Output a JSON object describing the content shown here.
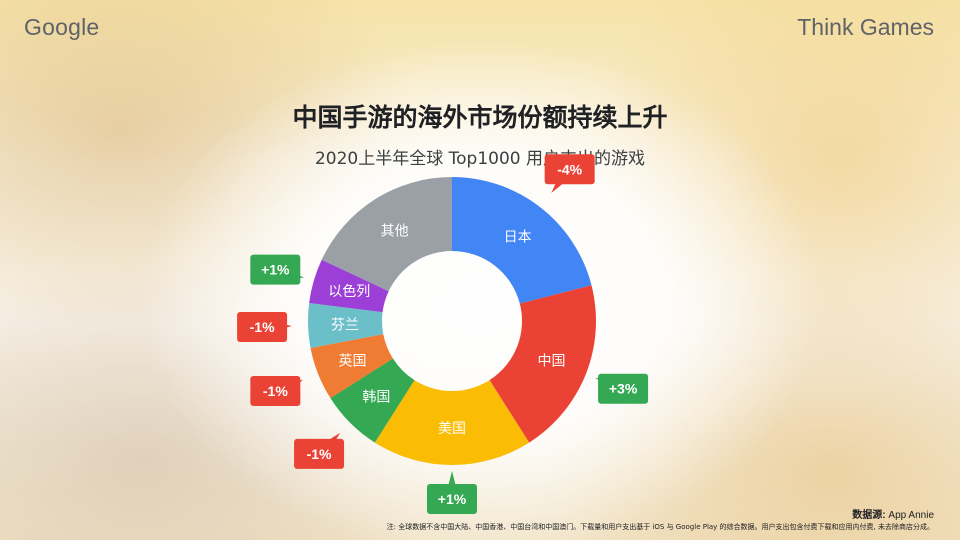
{
  "header": {
    "logo": "Google",
    "brand": "Think Games"
  },
  "chart_data": {
    "type": "pie",
    "title": "中国手游的海外市场份额持续上升",
    "subtitle": "2020上半年全球 Top1000 用户支出的游戏",
    "slices": [
      {
        "label": "日本",
        "value": 21,
        "color": "#4285f4",
        "change": "-4%",
        "change_color": "#ea4335"
      },
      {
        "label": "中国",
        "value": 20,
        "color": "#ea4335",
        "change": "+3%",
        "change_color": "#34a853"
      },
      {
        "label": "美国",
        "value": 18,
        "color": "#fbbc04",
        "change": "+1%",
        "change_color": "#34a853"
      },
      {
        "label": "韩国",
        "value": 7,
        "color": "#34a853",
        "change": "-1%",
        "change_color": "#ea4335"
      },
      {
        "label": "英国",
        "value": 6,
        "color": "#f07b32",
        "change": "-1%",
        "change_color": "#ea4335"
      },
      {
        "label": "芬兰",
        "value": 5,
        "color": "#6bbfc9",
        "change": "-1%",
        "change_color": "#ea4335"
      },
      {
        "label": "以色列",
        "value": 5,
        "color": "#9c3fd6",
        "change": "+1%",
        "change_color": "#34a853"
      },
      {
        "label": "其他",
        "value": 18,
        "color": "#9aa0a6",
        "change": "",
        "change_color": ""
      }
    ]
  },
  "footer": {
    "source_label": "数据源:",
    "source_value": " App Annie",
    "note": "注: 全球数据不含中国大陆、中国香港、中国台湾和中国澳门。下载量和用户支出基于 iOS 与 Google Play 的综合数据。用户支出包含付费下载和应用内付费, 未去除商店分成。"
  }
}
